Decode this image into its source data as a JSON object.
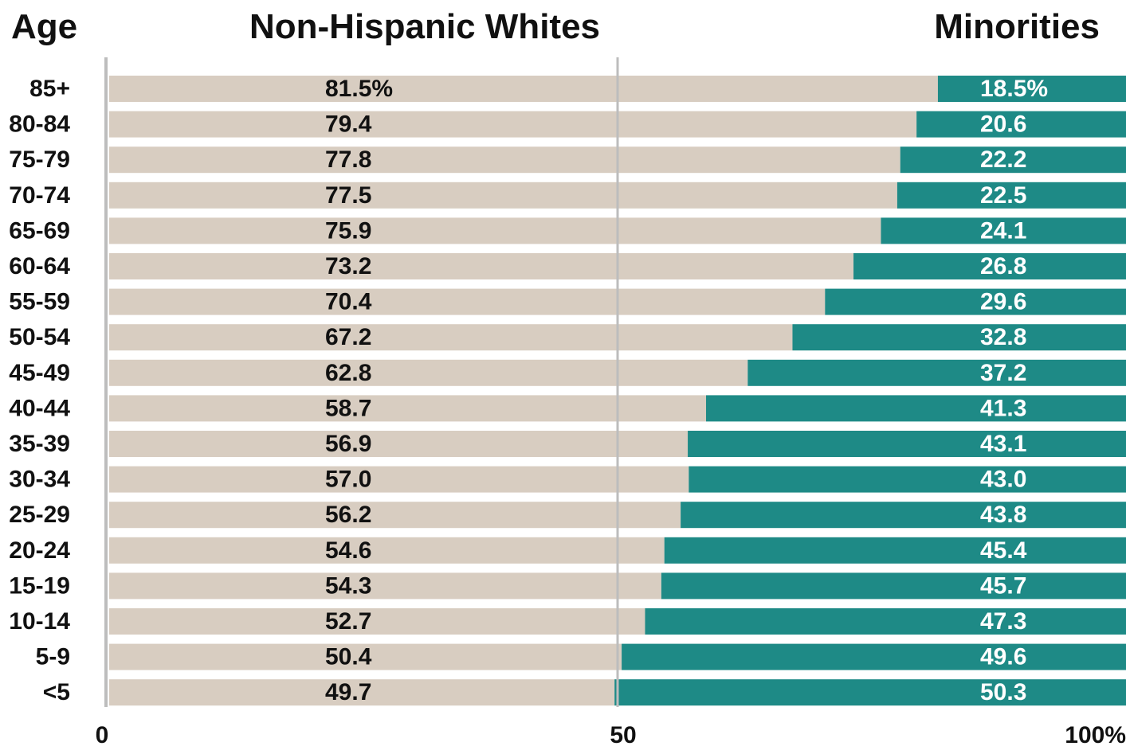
{
  "headers": {
    "age": "Age",
    "left": "Non-Hispanic Whites",
    "right": "Minorities"
  },
  "colors": {
    "white_bar": "#d8cdc1",
    "minority_bar": "#1e8a86",
    "axis": "#bdbdbd",
    "text": "#111111"
  },
  "chart_data": {
    "type": "bar",
    "orientation": "horizontal-stacked-100",
    "categories": [
      "85+",
      "80-84",
      "75-79",
      "70-74",
      "65-69",
      "60-64",
      "55-59",
      "50-54",
      "45-49",
      "40-44",
      "35-39",
      "30-34",
      "25-29",
      "20-24",
      "15-19",
      "10-14",
      "5-9",
      "<5"
    ],
    "series": [
      {
        "name": "Non-Hispanic Whites",
        "values": [
          81.5,
          79.4,
          77.8,
          77.5,
          75.9,
          73.2,
          70.4,
          67.2,
          62.8,
          58.7,
          56.9,
          57.0,
          56.2,
          54.6,
          54.3,
          52.7,
          50.4,
          49.7
        ],
        "labels": [
          "81.5%",
          "79.4",
          "77.8",
          "77.5",
          "75.9",
          "73.2",
          "70.4",
          "67.2",
          "62.8",
          "58.7",
          "56.9",
          "57.0",
          "56.2",
          "54.6",
          "54.3",
          "52.7",
          "50.4",
          "49.7"
        ]
      },
      {
        "name": "Minorities",
        "values": [
          18.5,
          20.6,
          22.2,
          22.5,
          24.1,
          26.8,
          29.6,
          32.8,
          37.2,
          41.3,
          43.1,
          43.0,
          43.8,
          45.4,
          45.7,
          47.3,
          49.6,
          50.3
        ],
        "labels": [
          "18.5%",
          "20.6",
          "22.2",
          "22.5",
          "24.1",
          "26.8",
          "29.6",
          "32.8",
          "37.2",
          "41.3",
          "43.1",
          "43.0",
          "43.8",
          "45.4",
          "45.7",
          "47.3",
          "49.6",
          "50.3"
        ]
      }
    ],
    "xlim": [
      0,
      100
    ],
    "x_ticks": [
      "0",
      "50",
      "100%"
    ],
    "reference_line": 50,
    "grid": false
  }
}
